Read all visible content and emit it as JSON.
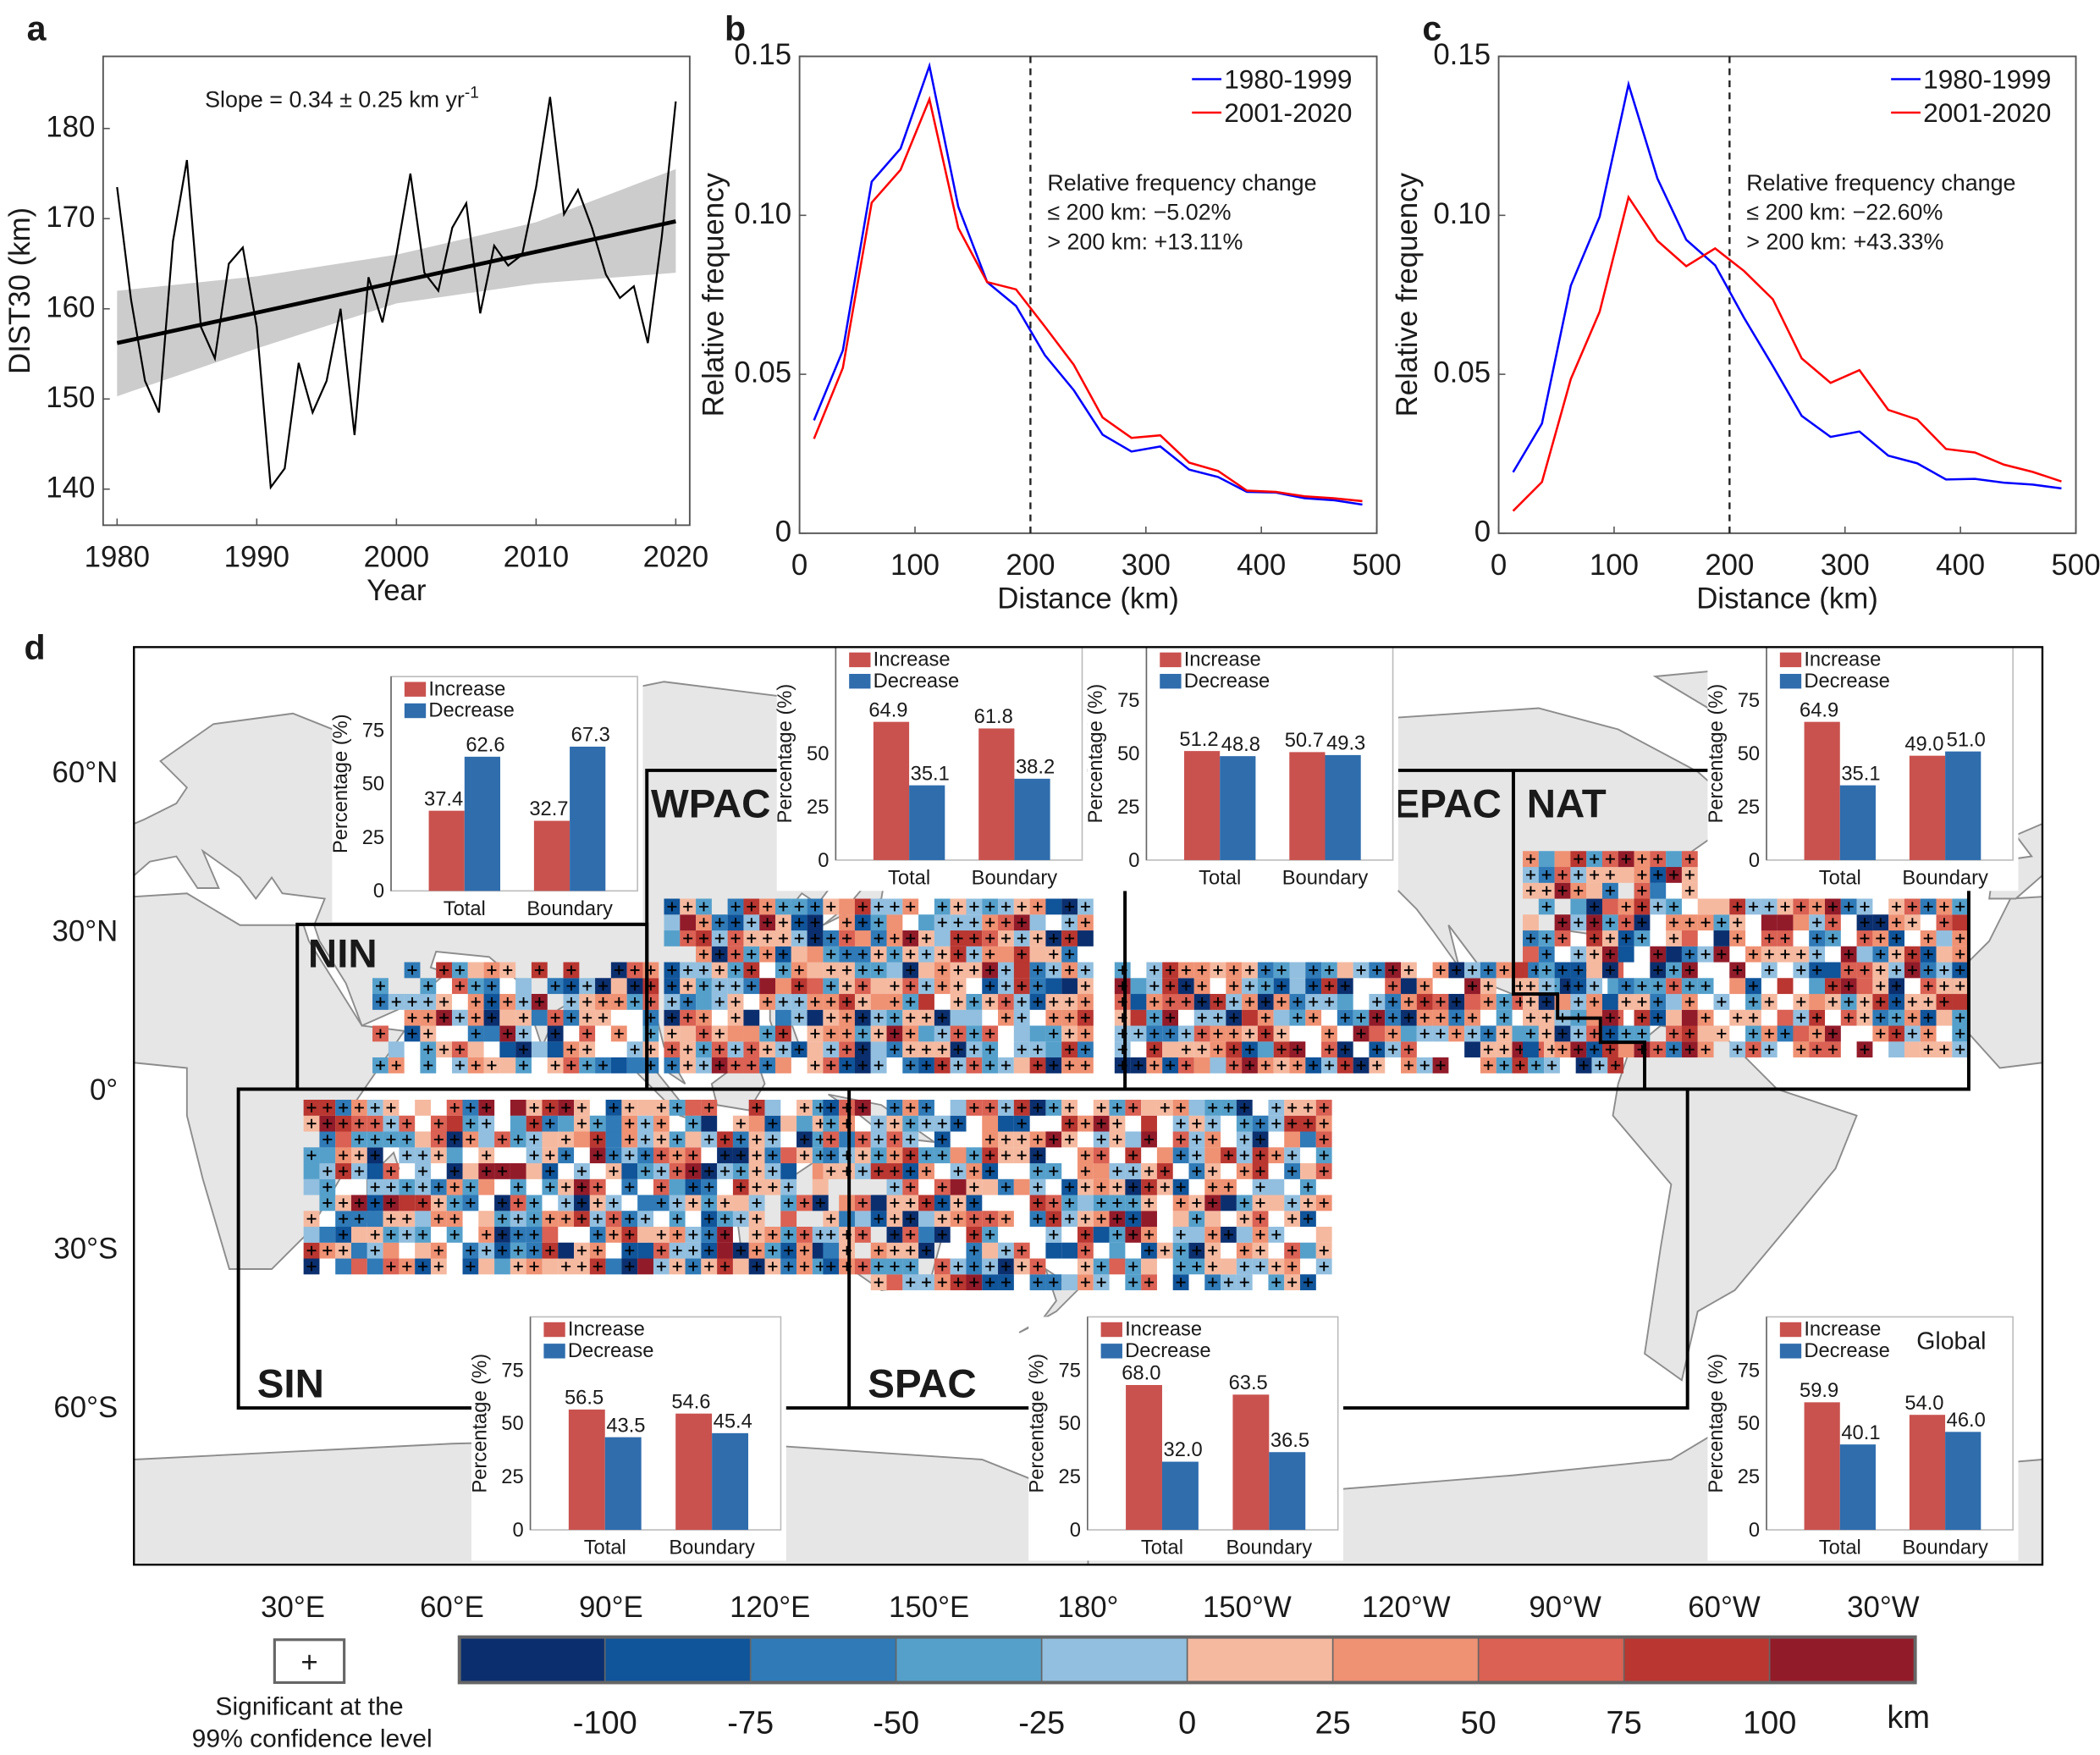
{
  "panel_labels": {
    "a": "a",
    "b": "b",
    "c": "c",
    "d": "d"
  },
  "chart_data": [
    {
      "panel": "a",
      "type": "line",
      "x": [
        1980,
        1981,
        1982,
        1983,
        1984,
        1985,
        1986,
        1987,
        1988,
        1989,
        1990,
        1991,
        1992,
        1993,
        1994,
        1995,
        1996,
        1997,
        1998,
        1999,
        2000,
        2001,
        2002,
        2003,
        2004,
        2005,
        2006,
        2007,
        2008,
        2009,
        2010,
        2011,
        2012,
        2013,
        2014,
        2015,
        2016,
        2017,
        2018,
        2019,
        2020
      ],
      "series": [
        {
          "color": "#000000",
          "values": [
            173.5,
            161,
            152,
            148.5,
            167.5,
            176.5,
            158,
            154.5,
            165,
            166.8,
            158,
            140.2,
            142.3,
            154,
            148.5,
            152,
            160,
            146,
            163.5,
            158.5,
            166,
            175,
            164,
            162,
            169,
            171.7,
            159.5,
            167,
            164.8,
            166,
            173.5,
            183.5,
            170.5,
            173.2,
            169,
            163.8,
            161.2,
            162.5,
            156.2,
            168,
            183
          ]
        }
      ],
      "trend": {
        "x": [
          1980,
          2020
        ],
        "y": [
          156.2,
          169.7
        ]
      },
      "confidence_band": {
        "x": [
          1980,
          1990,
          2000,
          2010,
          2020
        ],
        "lower": [
          150.3,
          155.6,
          160.6,
          162.8,
          164.0
        ],
        "upper": [
          162.0,
          163.6,
          166.0,
          169.6,
          175.5
        ],
        "color": "#cccccc"
      },
      "annotation": "Slope = 0.34 ± 0.25 km yr",
      "annotation_superscript": "-1",
      "xlabel": "Year",
      "ylabel": "DIST30 (km)",
      "xlim": [
        1979,
        2021
      ],
      "ylim": [
        136,
        188
      ],
      "xticks": [
        1980,
        1990,
        2000,
        2010,
        2020
      ],
      "yticks": [
        140,
        150,
        160,
        170,
        180
      ],
      "xtick_labels": [
        "1980",
        "1990",
        "2000",
        "2010",
        "2020"
      ],
      "ytick_labels": [
        "140",
        "150",
        "160",
        "170",
        "180"
      ],
      "grid": false
    },
    {
      "panel": "b",
      "type": "line",
      "x": [
        12.5,
        37.5,
        62.5,
        87.5,
        112.5,
        137.5,
        162.5,
        187.5,
        212.5,
        237.5,
        262.5,
        287.5,
        312.5,
        337.5,
        362.5,
        387.5,
        412.5,
        437.5,
        462.5,
        487.5
      ],
      "series": [
        {
          "name": "1980-1999",
          "color": "#0000ff",
          "values": [
            0.0355,
            0.0575,
            0.1106,
            0.121,
            0.147,
            0.1027,
            0.079,
            0.0715,
            0.056,
            0.045,
            0.031,
            0.0257,
            0.0273,
            0.02,
            0.0177,
            0.013,
            0.0128,
            0.011,
            0.0104,
            0.009
          ]
        },
        {
          "name": "2001-2020",
          "color": "#ff0000",
          "values": [
            0.0297,
            0.052,
            0.104,
            0.1143,
            0.1365,
            0.096,
            0.079,
            0.0767,
            0.065,
            0.053,
            0.0364,
            0.03,
            0.0308,
            0.0222,
            0.0196,
            0.0134,
            0.013,
            0.0116,
            0.011,
            0.0101
          ]
        }
      ],
      "vline": 200,
      "annotation_lines": [
        "Relative frequency change",
        "≤ 200 km: −5.02%",
        "> 200 km: +13.11%"
      ],
      "xlabel": "Distance (km)",
      "ylabel": "Relative frequency",
      "xlim": [
        0,
        500
      ],
      "ylim": [
        0,
        0.15
      ],
      "xticks": [
        0,
        100,
        200,
        300,
        400,
        500
      ],
      "yticks": [
        0,
        0.05,
        0.1,
        0.15
      ],
      "xtick_labels": [
        "0",
        "100",
        "200",
        "300",
        "400",
        "500"
      ],
      "ytick_labels": [
        "0",
        "0.05",
        "0.10",
        "0.15"
      ],
      "legend_position": "top-right",
      "grid": false
    },
    {
      "panel": "c",
      "type": "line",
      "x": [
        12.5,
        37.5,
        62.5,
        87.5,
        112.5,
        137.5,
        162.5,
        187.5,
        212.5,
        237.5,
        262.5,
        287.5,
        312.5,
        337.5,
        362.5,
        387.5,
        412.5,
        437.5,
        462.5,
        487.5
      ],
      "series": [
        {
          "name": "1980-1999",
          "color": "#0000ff",
          "values": [
            0.0192,
            0.0345,
            0.0779,
            0.0996,
            0.1412,
            0.1116,
            0.0923,
            0.0843,
            0.0678,
            0.0526,
            0.0369,
            0.0303,
            0.032,
            0.0244,
            0.022,
            0.0169,
            0.0171,
            0.0159,
            0.0153,
            0.0141
          ]
        },
        {
          "name": "2001-2020",
          "color": "#ff0000",
          "values": [
            0.007,
            0.0161,
            0.0485,
            0.0697,
            0.1057,
            0.092,
            0.084,
            0.0896,
            0.0825,
            0.0736,
            0.055,
            0.0473,
            0.0513,
            0.0388,
            0.0358,
            0.0265,
            0.0254,
            0.0216,
            0.0193,
            0.0163
          ]
        }
      ],
      "vline": 200,
      "annotation_lines": [
        "Relative frequency change",
        "≤ 200 km: −22.60%",
        "> 200 km: +43.33%"
      ],
      "xlabel": "Distance (km)",
      "ylabel": "Relative frequency",
      "xlim": [
        0,
        500
      ],
      "ylim": [
        0,
        0.15
      ],
      "xticks": [
        0,
        100,
        200,
        300,
        400,
        500
      ],
      "yticks": [
        0,
        0.05,
        0.1,
        0.15
      ],
      "xtick_labels": [
        "0",
        "100",
        "200",
        "300",
        "400",
        "500"
      ],
      "ytick_labels": [
        "0",
        "0.05",
        "0.10",
        "0.15"
      ],
      "legend_position": "top-right",
      "grid": false
    },
    {
      "panel": "d-NIN",
      "type": "bar",
      "categories": [
        "Total",
        "Boundary"
      ],
      "series": [
        {
          "name": "Increase",
          "color": "#c9524f",
          "values": [
            37.4,
            32.7
          ]
        },
        {
          "name": "Decrease",
          "color": "#2f6dad",
          "values": [
            62.6,
            67.3
          ]
        }
      ],
      "value_labels": [
        [
          "37.4",
          "32.7"
        ],
        [
          "62.6",
          "67.3"
        ]
      ],
      "ylabel": "Percentage (%)",
      "ylim": [
        0,
        100
      ],
      "yticks": [
        0,
        25,
        50,
        75
      ],
      "ytick_labels": [
        "0",
        "25",
        "50",
        "75"
      ]
    },
    {
      "panel": "d-WPAC",
      "type": "bar",
      "categories": [
        "Total",
        "Boundary"
      ],
      "series": [
        {
          "name": "Increase",
          "color": "#c9524f",
          "values": [
            64.9,
            61.8
          ]
        },
        {
          "name": "Decrease",
          "color": "#2f6dad",
          "values": [
            35.1,
            38.2
          ]
        }
      ],
      "value_labels": [
        [
          "64.9",
          "61.8"
        ],
        [
          "35.1",
          "38.2"
        ]
      ],
      "ylabel": "Percentage (%)",
      "ylim": [
        0,
        100
      ],
      "yticks": [
        0,
        25,
        50
      ],
      "ytick_labels": [
        "0",
        "25",
        "50"
      ]
    },
    {
      "panel": "d-EPAC",
      "type": "bar",
      "categories": [
        "Total",
        "Boundary"
      ],
      "series": [
        {
          "name": "Increase",
          "color": "#c9524f",
          "values": [
            51.2,
            50.7
          ]
        },
        {
          "name": "Decrease",
          "color": "#2f6dad",
          "values": [
            48.8,
            49.3
          ]
        }
      ],
      "value_labels": [
        [
          "51.2",
          "50.7"
        ],
        [
          "48.8",
          "49.3"
        ]
      ],
      "ylabel": "Percentage (%)",
      "ylim": [
        0,
        100
      ],
      "yticks": [
        0,
        25,
        50,
        75
      ],
      "ytick_labels": [
        "0",
        "25",
        "50",
        "75"
      ]
    },
    {
      "panel": "d-NAT",
      "type": "bar",
      "categories": [
        "Total",
        "Boundary"
      ],
      "series": [
        {
          "name": "Increase",
          "color": "#c9524f",
          "values": [
            64.9,
            49.0
          ]
        },
        {
          "name": "Decrease",
          "color": "#2f6dad",
          "values": [
            35.1,
            51.0
          ]
        }
      ],
      "value_labels": [
        [
          "64.9",
          "49.0"
        ],
        [
          "35.1",
          "51.0"
        ]
      ],
      "ylabel": "Percentage (%)",
      "ylim": [
        0,
        100
      ],
      "yticks": [
        0,
        25,
        50,
        75
      ],
      "ytick_labels": [
        "0",
        "25",
        "50",
        "75"
      ]
    },
    {
      "panel": "d-SIN",
      "type": "bar",
      "categories": [
        "Total",
        "Boundary"
      ],
      "series": [
        {
          "name": "Increase",
          "color": "#c9524f",
          "values": [
            56.5,
            54.6
          ]
        },
        {
          "name": "Decrease",
          "color": "#2f6dad",
          "values": [
            43.5,
            45.4
          ]
        }
      ],
      "value_labels": [
        [
          "56.5",
          "54.6"
        ],
        [
          "43.5",
          "45.4"
        ]
      ],
      "ylabel": "Percentage (%)",
      "ylim": [
        0,
        100
      ],
      "yticks": [
        0,
        25,
        50,
        75
      ],
      "ytick_labels": [
        "0",
        "25",
        "50",
        "75"
      ]
    },
    {
      "panel": "d-SPAC",
      "type": "bar",
      "categories": [
        "Total",
        "Boundary"
      ],
      "series": [
        {
          "name": "Increase",
          "color": "#c9524f",
          "values": [
            68.0,
            63.5
          ]
        },
        {
          "name": "Decrease",
          "color": "#2f6dad",
          "values": [
            32.0,
            36.5
          ]
        }
      ],
      "value_labels": [
        [
          "68.0",
          "63.5"
        ],
        [
          "32.0",
          "36.5"
        ]
      ],
      "ylabel": "Percentage (%)",
      "ylim": [
        0,
        100
      ],
      "yticks": [
        0,
        25,
        50,
        75
      ],
      "ytick_labels": [
        "0",
        "25",
        "50",
        "75"
      ]
    },
    {
      "panel": "d-Global",
      "title": "Global",
      "type": "bar",
      "categories": [
        "Total",
        "Boundary"
      ],
      "series": [
        {
          "name": "Increase",
          "color": "#c9524f",
          "values": [
            59.9,
            54.0
          ]
        },
        {
          "name": "Decrease",
          "color": "#2f6dad",
          "values": [
            40.1,
            46.0
          ]
        }
      ],
      "value_labels": [
        [
          "59.9",
          "54.0"
        ],
        [
          "40.1",
          "46.0"
        ]
      ],
      "ylabel": "Percentage (%)",
      "ylim": [
        0,
        100
      ],
      "yticks": [
        0,
        25,
        50,
        75
      ],
      "ytick_labels": [
        "0",
        "25",
        "50",
        "75"
      ]
    }
  ],
  "map": {
    "type": "heatmap",
    "lat_labels": [
      "60°N",
      "30°N",
      "0°",
      "30°S",
      "60°S"
    ],
    "lon_labels": [
      "30°E",
      "60°E",
      "90°E",
      "120°E",
      "150°E",
      "180°",
      "150°W",
      "120°W",
      "90°W",
      "60°W",
      "30°W"
    ],
    "regions": [
      "NIN",
      "WPAC",
      "EPAC",
      "NAT",
      "SIN",
      "SPAC"
    ],
    "land_color": "#e6e6e6",
    "coast_color": "#8c8c8c"
  },
  "colorbar": {
    "colors": [
      "#0b2f6e",
      "#10549a",
      "#2f7ab7",
      "#55a0cb",
      "#92bfdf",
      "#f5b9a0",
      "#ef9173",
      "#da6153",
      "#b93631",
      "#921b2a"
    ],
    "tick_labels": [
      "-100",
      "-75",
      "-50",
      "-25",
      "0",
      "25",
      "50",
      "75",
      "100"
    ],
    "unit": "km"
  },
  "significance": {
    "symbol": "+",
    "label_line1": "Significant at the",
    "label_line2": "99% confidence level"
  }
}
